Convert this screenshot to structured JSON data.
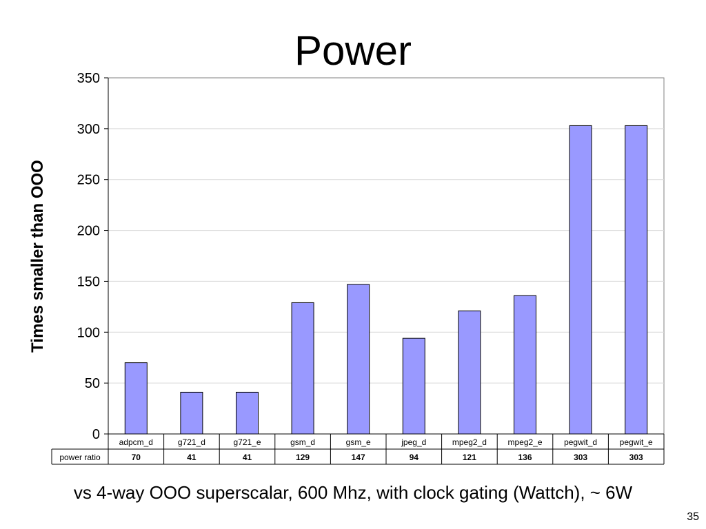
{
  "slide": {
    "title": "Power",
    "caption": "vs 4-way OOO superscalar, 600 Mhz, with clock gating (Wattch), ~ 6W",
    "page_number": "35"
  },
  "chart_data": {
    "type": "bar",
    "title": "",
    "xlabel": "",
    "ylabel": "Times smaller than OOO",
    "categories": [
      "adpcm_d",
      "g721_d",
      "g721_e",
      "gsm_d",
      "gsm_e",
      "jpeg_d",
      "mpeg2_d",
      "mpeg2_e",
      "pegwit_d",
      "pegwit_e"
    ],
    "series": [
      {
        "name": "power ratio",
        "values": [
          70,
          41,
          41,
          129,
          147,
          94,
          121,
          136,
          303,
          303
        ],
        "color": "#9999ff"
      }
    ],
    "ylim": [
      0,
      350
    ],
    "yticks": [
      0,
      50,
      100,
      150,
      200,
      250,
      300,
      350
    ],
    "grid": true,
    "legend": "none",
    "data_table": true
  }
}
